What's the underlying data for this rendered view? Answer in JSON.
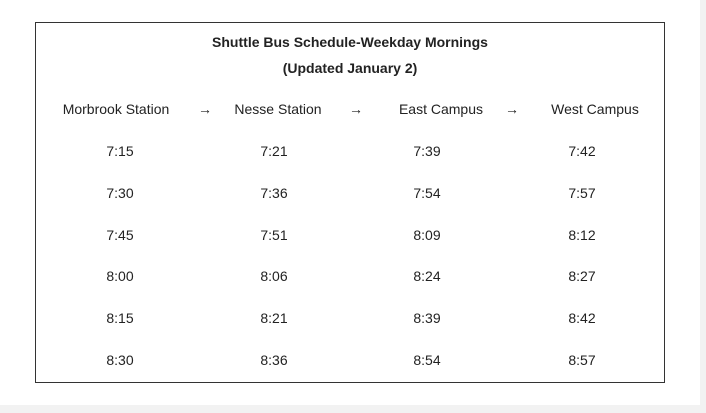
{
  "title": "Shuttle Bus Schedule-Weekday Mornings",
  "subtitle": "(Updated January 2)",
  "arrow": "→",
  "stops": [
    "Morbrook Station",
    "Nesse Station",
    "East Campus",
    "West Campus"
  ],
  "times": [
    [
      "7:15",
      "7:21",
      "7:39",
      "7:42"
    ],
    [
      "7:30",
      "7:36",
      "7:54",
      "7:57"
    ],
    [
      "7:45",
      "7:51",
      "8:09",
      "8:12"
    ],
    [
      "8:00",
      "8:06",
      "8:24",
      "8:27"
    ],
    [
      "8:15",
      "8:21",
      "8:39",
      "8:42"
    ],
    [
      "8:30",
      "8:36",
      "8:54",
      "8:57"
    ]
  ]
}
